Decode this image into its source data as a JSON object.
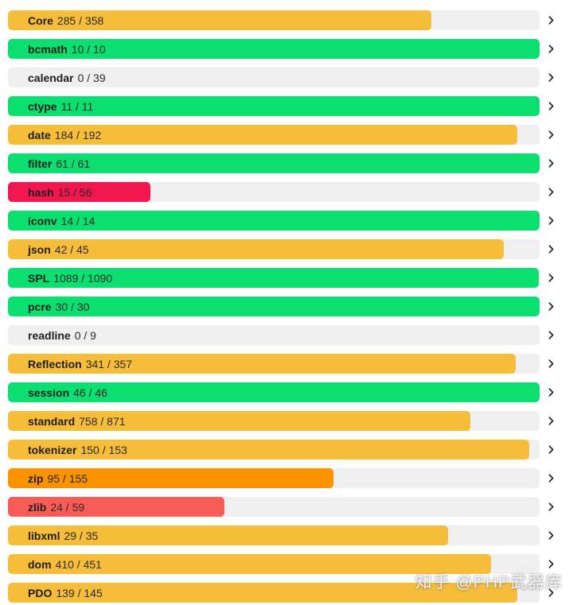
{
  "watermark": {
    "text": "知乎 @PHP武器库"
  },
  "colors": {
    "green": "#0bdf70",
    "amber": "#f5bd3a",
    "orange": "#fb9300",
    "salmon": "#f95b57",
    "crimson": "#f2164e",
    "track": "#efefef",
    "label_text": "#1e1e1e",
    "chevron": "#1f1f1f"
  },
  "chart_data": {
    "type": "bar",
    "orientation": "horizontal",
    "title": "",
    "unit": "tests passed / total tests",
    "number_separator": "/",
    "value_range_pct": [
      0,
      100
    ],
    "rows": [
      {
        "label": "Core",
        "passed": 285,
        "total": 358,
        "color": "amber"
      },
      {
        "label": "bcmath",
        "passed": 10,
        "total": 10,
        "color": "green"
      },
      {
        "label": "calendar",
        "passed": 0,
        "total": 39,
        "color": "none"
      },
      {
        "label": "ctype",
        "passed": 11,
        "total": 11,
        "color": "green"
      },
      {
        "label": "date",
        "passed": 184,
        "total": 192,
        "color": "amber"
      },
      {
        "label": "filter",
        "passed": 61,
        "total": 61,
        "color": "green"
      },
      {
        "label": "hash",
        "passed": 15,
        "total": 56,
        "color": "crimson"
      },
      {
        "label": "iconv",
        "passed": 14,
        "total": 14,
        "color": "green"
      },
      {
        "label": "json",
        "passed": 42,
        "total": 45,
        "color": "amber"
      },
      {
        "label": "SPL",
        "passed": 1089,
        "total": 1090,
        "color": "green"
      },
      {
        "label": "pcre",
        "passed": 30,
        "total": 30,
        "color": "green"
      },
      {
        "label": "readline",
        "passed": 0,
        "total": 9,
        "color": "none"
      },
      {
        "label": "Reflection",
        "passed": 341,
        "total": 357,
        "color": "amber"
      },
      {
        "label": "session",
        "passed": 46,
        "total": 46,
        "color": "green"
      },
      {
        "label": "standard",
        "passed": 758,
        "total": 871,
        "color": "amber"
      },
      {
        "label": "tokenizer",
        "passed": 150,
        "total": 153,
        "color": "amber"
      },
      {
        "label": "zip",
        "passed": 95,
        "total": 155,
        "color": "orange"
      },
      {
        "label": "zlib",
        "passed": 24,
        "total": 59,
        "color": "salmon"
      },
      {
        "label": "libxml",
        "passed": 29,
        "total": 35,
        "color": "amber"
      },
      {
        "label": "dom",
        "passed": 410,
        "total": 451,
        "color": "amber"
      },
      {
        "label": "PDO",
        "passed": 139,
        "total": 145,
        "color": "amber"
      }
    ]
  }
}
